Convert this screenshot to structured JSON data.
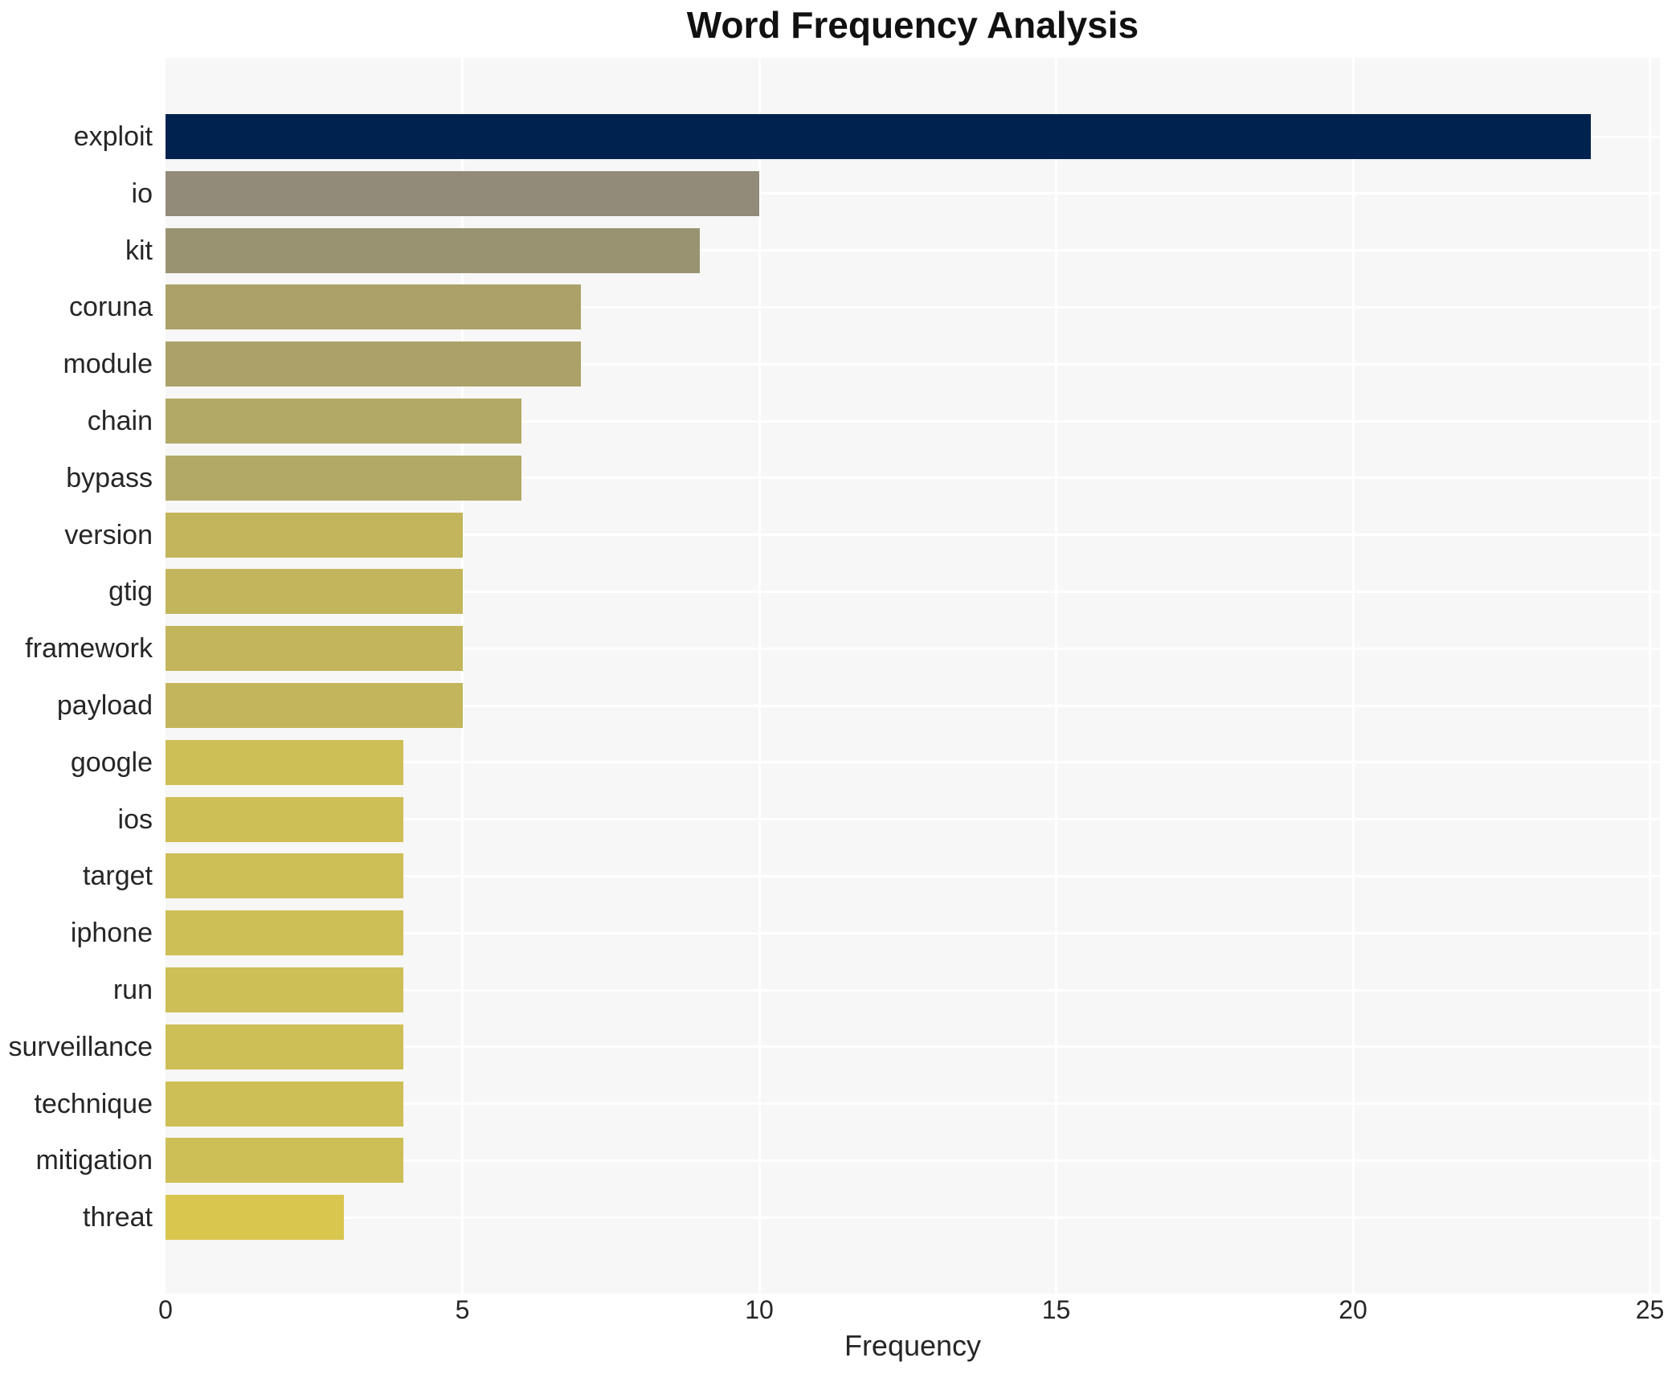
{
  "chart_data": {
    "type": "bar",
    "orientation": "horizontal",
    "title": "Word Frequency Analysis",
    "xlabel": "Frequency",
    "ylabel": "",
    "categories": [
      "exploit",
      "io",
      "kit",
      "coruna",
      "module",
      "chain",
      "bypass",
      "version",
      "gtig",
      "framework",
      "payload",
      "google",
      "ios",
      "target",
      "iphone",
      "run",
      "surveillance",
      "technique",
      "mitigation",
      "threat"
    ],
    "values": [
      24,
      10,
      9,
      7,
      7,
      6,
      6,
      5,
      5,
      5,
      5,
      4,
      4,
      4,
      4,
      4,
      4,
      4,
      4,
      3
    ],
    "bar_colors": [
      "#00224e",
      "#928b7a",
      "#9a9372",
      "#aca168",
      "#aca168",
      "#b3a966",
      "#b3a966",
      "#c3b55c",
      "#c3b55c",
      "#c3b55c",
      "#c3b55c",
      "#cdbe56",
      "#cdbe56",
      "#cdbe56",
      "#cdbe56",
      "#cdbe56",
      "#cdbe56",
      "#cdbe56",
      "#cdbe56",
      "#d9c64f"
    ],
    "xlim": [
      0,
      25
    ],
    "xticks": [
      0,
      5,
      10,
      15,
      20,
      25
    ],
    "grid": "white gridlines on light panel, vertical at x ticks and horizontal at category centers",
    "legend": "none",
    "colors": {
      "panel_bg": "#f6f7f6",
      "page_bg": "#ffffff",
      "gridline": "#ffffff",
      "tick_text": "#262626",
      "title_text": "#111111"
    }
  }
}
